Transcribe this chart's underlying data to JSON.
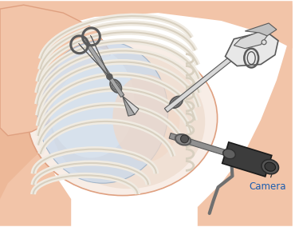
{
  "bg_color": "#ffffff",
  "skin_color": "#f2c4a8",
  "skin_mid": "#edb898",
  "skin_dark": "#dfa080",
  "chest_bg": "#f8ede6",
  "chest_inner": "#f0e0d4",
  "lung_color": "#c8d8ec",
  "lung_highlight": "#dce8f4",
  "rib_fill": "#f0ebe2",
  "rib_edge": "#d8d0c0",
  "rib_shadow": "#c8c0b0",
  "instrument_gray": "#a8a8a8",
  "instrument_dark": "#5a5a5a",
  "instrument_light": "#d8d8d8",
  "instrument_white": "#e8e8e8",
  "camera_label": "Camera",
  "label_color": "#1a5cb0",
  "figsize": [
    3.7,
    2.84
  ],
  "dpi": 100
}
